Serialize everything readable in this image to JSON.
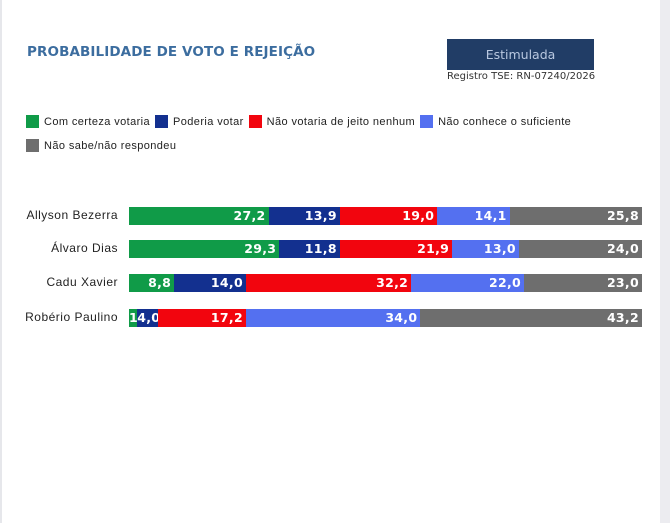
{
  "header": {
    "title": "PROBABILIDADE DE VOTO E REJEIÇÃO",
    "badge": "Estimulada",
    "registro": "Registro TSE: RN-07240/2026"
  },
  "chart_data": {
    "type": "bar",
    "orientation": "horizontal",
    "stacked": true,
    "title": "PROBABILIDADE DE VOTO E REJEIÇÃO",
    "xlabel": "",
    "ylabel": "",
    "xlim": [
      0,
      100
    ],
    "grid": false,
    "legend_position": "top-left",
    "categories": [
      "Allyson Bezerra",
      "Álvaro Dias",
      "Cadu Xavier",
      "Robério Paulino"
    ],
    "series": [
      {
        "name": "Com certeza votaria",
        "color": "#109b48",
        "values": [
          27.2,
          29.3,
          8.8,
          1.6
        ],
        "labels": [
          "27,2",
          "29,3",
          "8,8",
          "1,6"
        ]
      },
      {
        "name": "Poderia votar",
        "color": "#13308f",
        "values": [
          13.9,
          11.8,
          14.0,
          4.0
        ],
        "labels": [
          "13,9",
          "11,8",
          "14,0",
          "4,0"
        ]
      },
      {
        "name": "Não votaria de jeito nenhum",
        "color": "#f2050e",
        "values": [
          19.0,
          21.9,
          32.2,
          17.2
        ],
        "labels": [
          "19,0",
          "21,9",
          "32,2",
          "17,2"
        ]
      },
      {
        "name": "Não conhece o suficiente",
        "color": "#5470f0",
        "values": [
          14.1,
          13.0,
          22.0,
          34.0
        ],
        "labels": [
          "14,1",
          "13,0",
          "22,0",
          "34,0"
        ]
      },
      {
        "name": "Não sabe/não respondeu",
        "color": "#6e6e6e",
        "values": [
          25.8,
          24.0,
          23.0,
          43.2
        ],
        "labels": [
          "25,8",
          "24,0",
          "23,0",
          "43,2"
        ]
      }
    ]
  }
}
